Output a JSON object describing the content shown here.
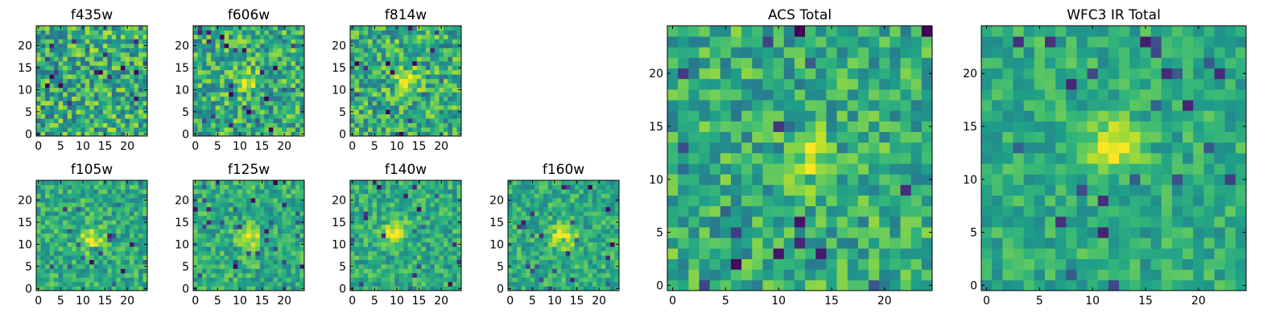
{
  "chart_data": {
    "type": "heatmap",
    "colormap": "viridis",
    "grid": false,
    "legend": "none",
    "panels": [
      {
        "title": "f435w",
        "grid_size": 25,
        "xticks": [
          "0",
          "5",
          "10",
          "15",
          "20"
        ],
        "yticks": [
          "0",
          "5",
          "10",
          "15",
          "20"
        ],
        "source_center": null,
        "signal": 0.0,
        "noise": 0.28
      },
      {
        "title": "f606w",
        "grid_size": 25,
        "xticks": [
          "0",
          "5",
          "10",
          "15",
          "20"
        ],
        "yticks": [
          "0",
          "5",
          "10",
          "15",
          "20"
        ],
        "source_center": [
          12,
          12
        ],
        "signal": 0.35,
        "noise": 0.26
      },
      {
        "title": "f814w",
        "grid_size": 25,
        "xticks": [
          "0",
          "5",
          "10",
          "15",
          "20"
        ],
        "yticks": [
          "0",
          "5",
          "10",
          "15",
          "20"
        ],
        "source_center": [
          12,
          12
        ],
        "signal": 0.45,
        "noise": 0.25
      },
      {
        "title": "f105w",
        "grid_size": 25,
        "xticks": [
          "0",
          "5",
          "10",
          "15",
          "20"
        ],
        "yticks": [
          "0",
          "5",
          "10",
          "15",
          "20"
        ],
        "source_center": [
          12,
          11
        ],
        "signal": 0.4,
        "noise": 0.18
      },
      {
        "title": "f125w",
        "grid_size": 25,
        "xticks": [
          "0",
          "5",
          "10",
          "15",
          "20"
        ],
        "yticks": [
          "0",
          "5",
          "10",
          "15",
          "20"
        ],
        "source_center": [
          12,
          12
        ],
        "signal": 0.38,
        "noise": 0.18
      },
      {
        "title": "f140w",
        "grid_size": 25,
        "xticks": [
          "0",
          "5",
          "10",
          "15",
          "20"
        ],
        "yticks": [
          "0",
          "5",
          "10",
          "15",
          "20"
        ],
        "source_center": [
          10,
          13
        ],
        "signal": 0.45,
        "noise": 0.17
      },
      {
        "title": "f160w",
        "grid_size": 25,
        "xticks": [
          "0",
          "5",
          "10",
          "15",
          "20"
        ],
        "yticks": [
          "0",
          "5",
          "10",
          "15",
          "20"
        ],
        "source_center": [
          12,
          12
        ],
        "signal": 0.5,
        "noise": 0.17
      },
      {
        "title": "ACS Total",
        "grid_size": 25,
        "xticks": [
          "0",
          "5",
          "10",
          "15",
          "20"
        ],
        "yticks": [
          "0",
          "5",
          "10",
          "15",
          "20"
        ],
        "source_center": [
          12,
          12
        ],
        "signal": 0.4,
        "noise": 0.22
      },
      {
        "title": "WFC3 IR Total",
        "grid_size": 25,
        "xticks": [
          "0",
          "5",
          "10",
          "15",
          "20"
        ],
        "yticks": [
          "0",
          "5",
          "10",
          "15",
          "20"
        ],
        "source_center": [
          12,
          13
        ],
        "signal": 0.45,
        "noise": 0.15
      }
    ]
  }
}
